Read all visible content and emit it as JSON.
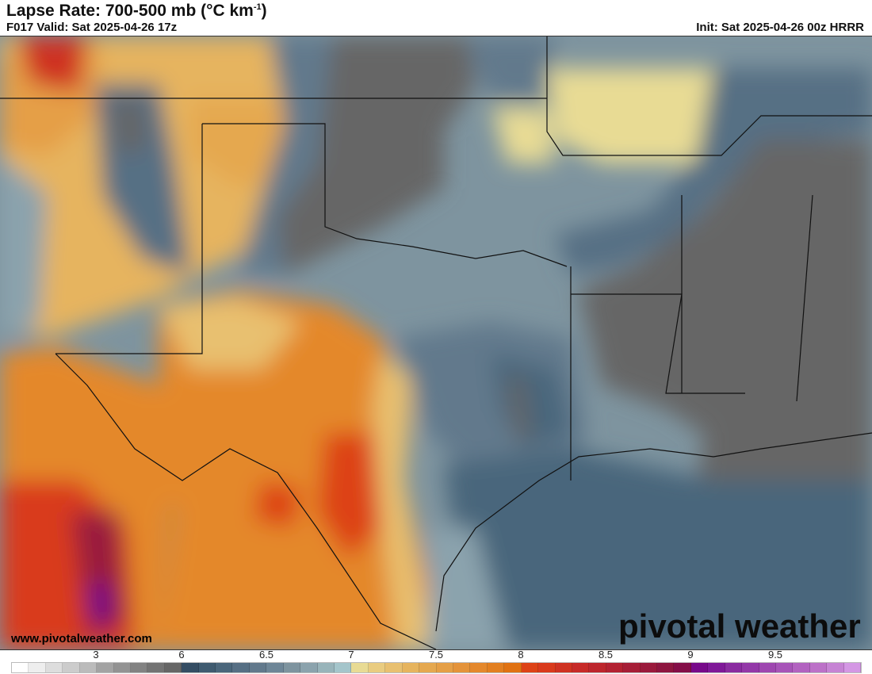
{
  "header": {
    "title": "Lapse Rate: 700-500 mb (°C km",
    "title_sup": "-1",
    "title_close": ")",
    "valid": "F017 Valid: Sat 2025-04-26 17z",
    "init": "Init: Sat 2025-04-26 00z HRRR"
  },
  "footer": {
    "website": "www.pivotalweather.com",
    "logo": "pivotal weather"
  },
  "colorbar": {
    "ticks": [
      "3",
      "6",
      "6.5",
      "7",
      "7.5",
      "8",
      "8.5",
      "9",
      "9.5"
    ],
    "colors": [
      "#ffffff",
      "#eeeeee",
      "#dddddd",
      "#cccccc",
      "#bbbbbb",
      "#a3a3a3",
      "#939393",
      "#828282",
      "#737373",
      "#666666",
      "#344d63",
      "#3f5b70",
      "#4a667b",
      "#566f84",
      "#62798c",
      "#6e8697",
      "#7e949f",
      "#8ba3ad",
      "#98b4ba",
      "#a4c5cb",
      "#e8db94",
      "#e9cc80",
      "#e8c070",
      "#e6b45e",
      "#e5a84f",
      "#e59f46",
      "#e4933a",
      "#e4882c",
      "#e27f20",
      "#e07212",
      "#dd4216",
      "#d93a1c",
      "#cf3222",
      "#c72a28",
      "#bd262d",
      "#b32232",
      "#a61e37",
      "#9a1a3c",
      "#8e1640",
      "#840e48",
      "#77098a",
      "#7f1898",
      "#8a2ba0",
      "#9338a8",
      "#9e47b0",
      "#a754b8",
      "#b262c0",
      "#bc71c8",
      "#c683d4",
      "#d497e4"
    ]
  }
}
